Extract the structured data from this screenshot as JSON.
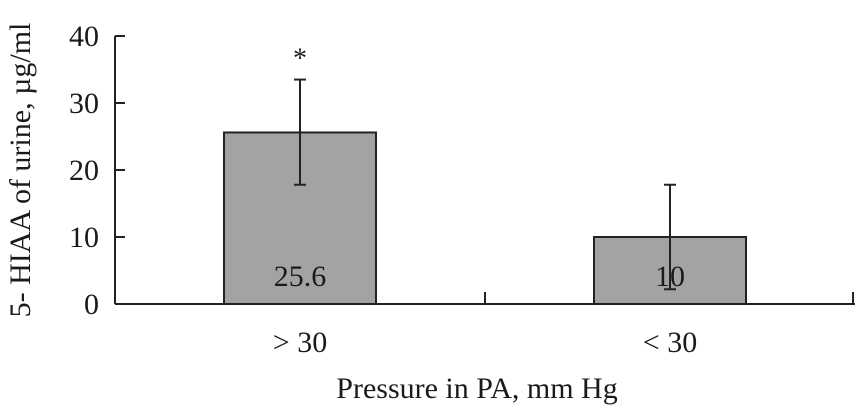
{
  "chart_data": {
    "type": "bar",
    "categories": [
      "> 30",
      "< 30"
    ],
    "values": [
      25.6,
      10
    ],
    "error_upper": [
      33.5,
      17.8
    ],
    "error_lower": [
      17.8,
      2.2
    ],
    "data_labels": [
      "25.6",
      "10"
    ],
    "significance": [
      "*",
      ""
    ],
    "xlabel": "Pressure in PA, mm Hg",
    "ylabel": "5- HIAA of urine, µg/ml",
    "ylim": [
      0,
      40
    ],
    "yticks": [
      0,
      10,
      20,
      30,
      40
    ],
    "grid": false,
    "bar_color": "#a3a3a3"
  }
}
